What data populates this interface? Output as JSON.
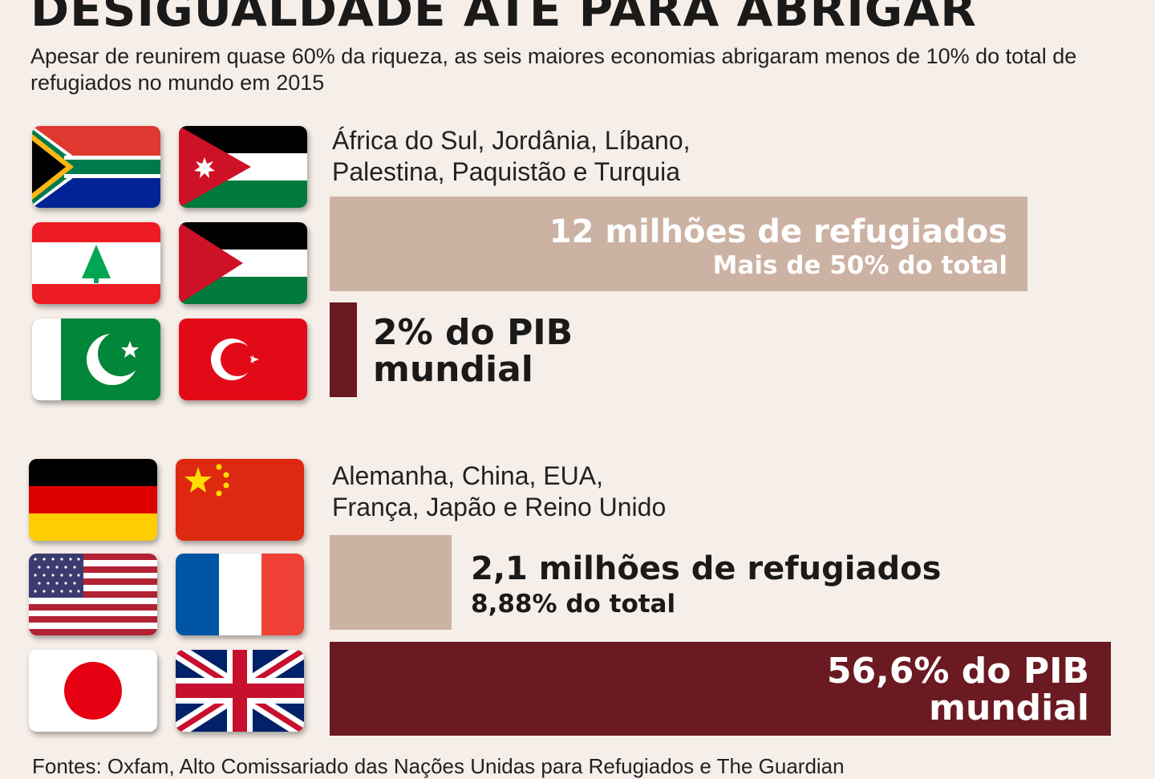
{
  "title": "DESIGUALDADE ATÉ PARA ABRIGAR",
  "subtitle": "Apesar de reunirem quase 60% da riqueza, as seis maiores economias abrigaram menos de 10% do total de refugiados no mundo em 2015",
  "source": "Fontes: Oxfam, Alto Comissariado das Nações Unidas para Refugiados e The Guardian",
  "colors": {
    "background": "#f6eee8",
    "refugees_bar": "#ccb2a3",
    "gdp_bar": "#6b1a22"
  },
  "chart_data": {
    "type": "bar",
    "groups": [
      {
        "countries_line1": "África do Sul, Jordânia, Líbano,",
        "countries_line2": "Palestina, Paquistão e Turquia",
        "flags": [
          "south-africa",
          "jordan",
          "lebanon",
          "palestine",
          "pakistan",
          "turkey"
        ],
        "refugees_millions": 12,
        "refugees_label": "12 milhões de refugiados",
        "refugees_share_label": "Mais de 50% do total",
        "gdp_percent": 2,
        "gdp_label_line1": "2% do PIB",
        "gdp_label_line2": "mundial"
      },
      {
        "countries_line1": "Alemanha, China, EUA,",
        "countries_line2": "França, Japão e Reino Unido",
        "flags": [
          "germany",
          "china",
          "usa",
          "france",
          "japan",
          "united-kingdom"
        ],
        "refugees_millions": 2.1,
        "refugees_label": "2,1 milhões de refugiados",
        "refugees_share_label": "8,88% do total",
        "gdp_percent": 56.6,
        "gdp_label_line1": "56,6% do PIB",
        "gdp_label_line2": "mundial"
      }
    ]
  }
}
